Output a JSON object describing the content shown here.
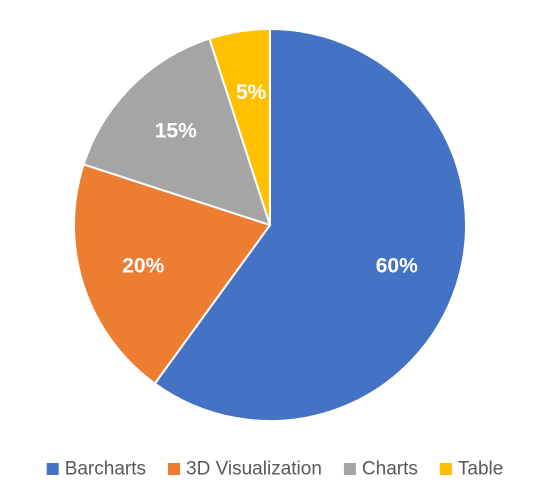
{
  "chart_data": {
    "type": "pie",
    "title": "",
    "legend_position": "bottom",
    "slices": [
      {
        "name": "Barcharts",
        "value": 60,
        "label": "60%",
        "color": "#4472C4"
      },
      {
        "name": "3D Visualization",
        "value": 20,
        "label": "20%",
        "color": "#ED7D31"
      },
      {
        "name": "Charts",
        "value": 15,
        "label": "15%",
        "color": "#A5A5A5"
      },
      {
        "name": "Table",
        "value": 5,
        "label": "5%",
        "color": "#FFC000"
      }
    ]
  }
}
